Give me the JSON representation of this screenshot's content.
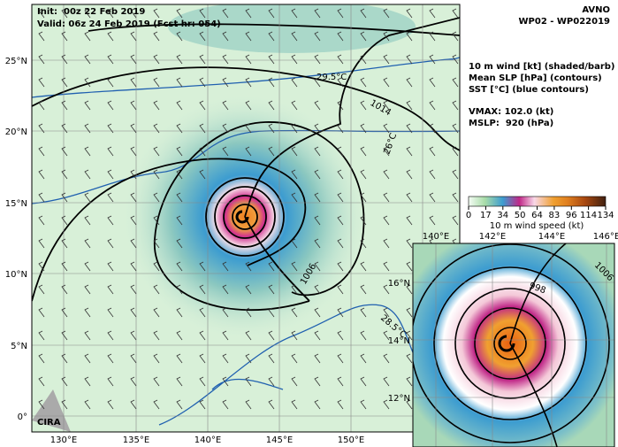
{
  "header": {
    "init": "Init:  00z 22 Feb 2019",
    "valid": "Valid: 06z 24 Feb 2019 (Fcst hr: 054)",
    "model": "AVNO",
    "storm": "WP02 - WP022019"
  },
  "legend": {
    "lines": [
      "10 m wind [kt] (shaded/barb)",
      "Mean SLP [hPa] (contours)",
      "SST [°C] (blue contours)"
    ],
    "vmax": "VMAX: 102.0 (kt)",
    "mslp": "MSLP:  920 (hPa)"
  },
  "colorbar": {
    "ticks": [
      "0",
      "17",
      "34",
      "50",
      "64",
      "83",
      "96",
      "114",
      "134"
    ],
    "label": "10 m wind speed (kt)"
  },
  "map": {
    "lat_labels": [
      "25°N",
      "20°N",
      "15°N",
      "10°N",
      "5°N",
      "0°"
    ],
    "lon_labels": [
      "130°E",
      "135°E",
      "140°E",
      "145°E",
      "150°E"
    ],
    "contour_labels": [
      "1014",
      "1006",
      "29.5°C",
      "26°C",
      "28.5°C"
    ],
    "logo": "CIRA"
  },
  "inset": {
    "lon_labels": [
      "140°E",
      "142°E",
      "144°E",
      "146°E"
    ],
    "lat_labels": [
      "16°N",
      "14°N",
      "12°N"
    ],
    "contour_labels": [
      "1006",
      "998"
    ]
  }
}
